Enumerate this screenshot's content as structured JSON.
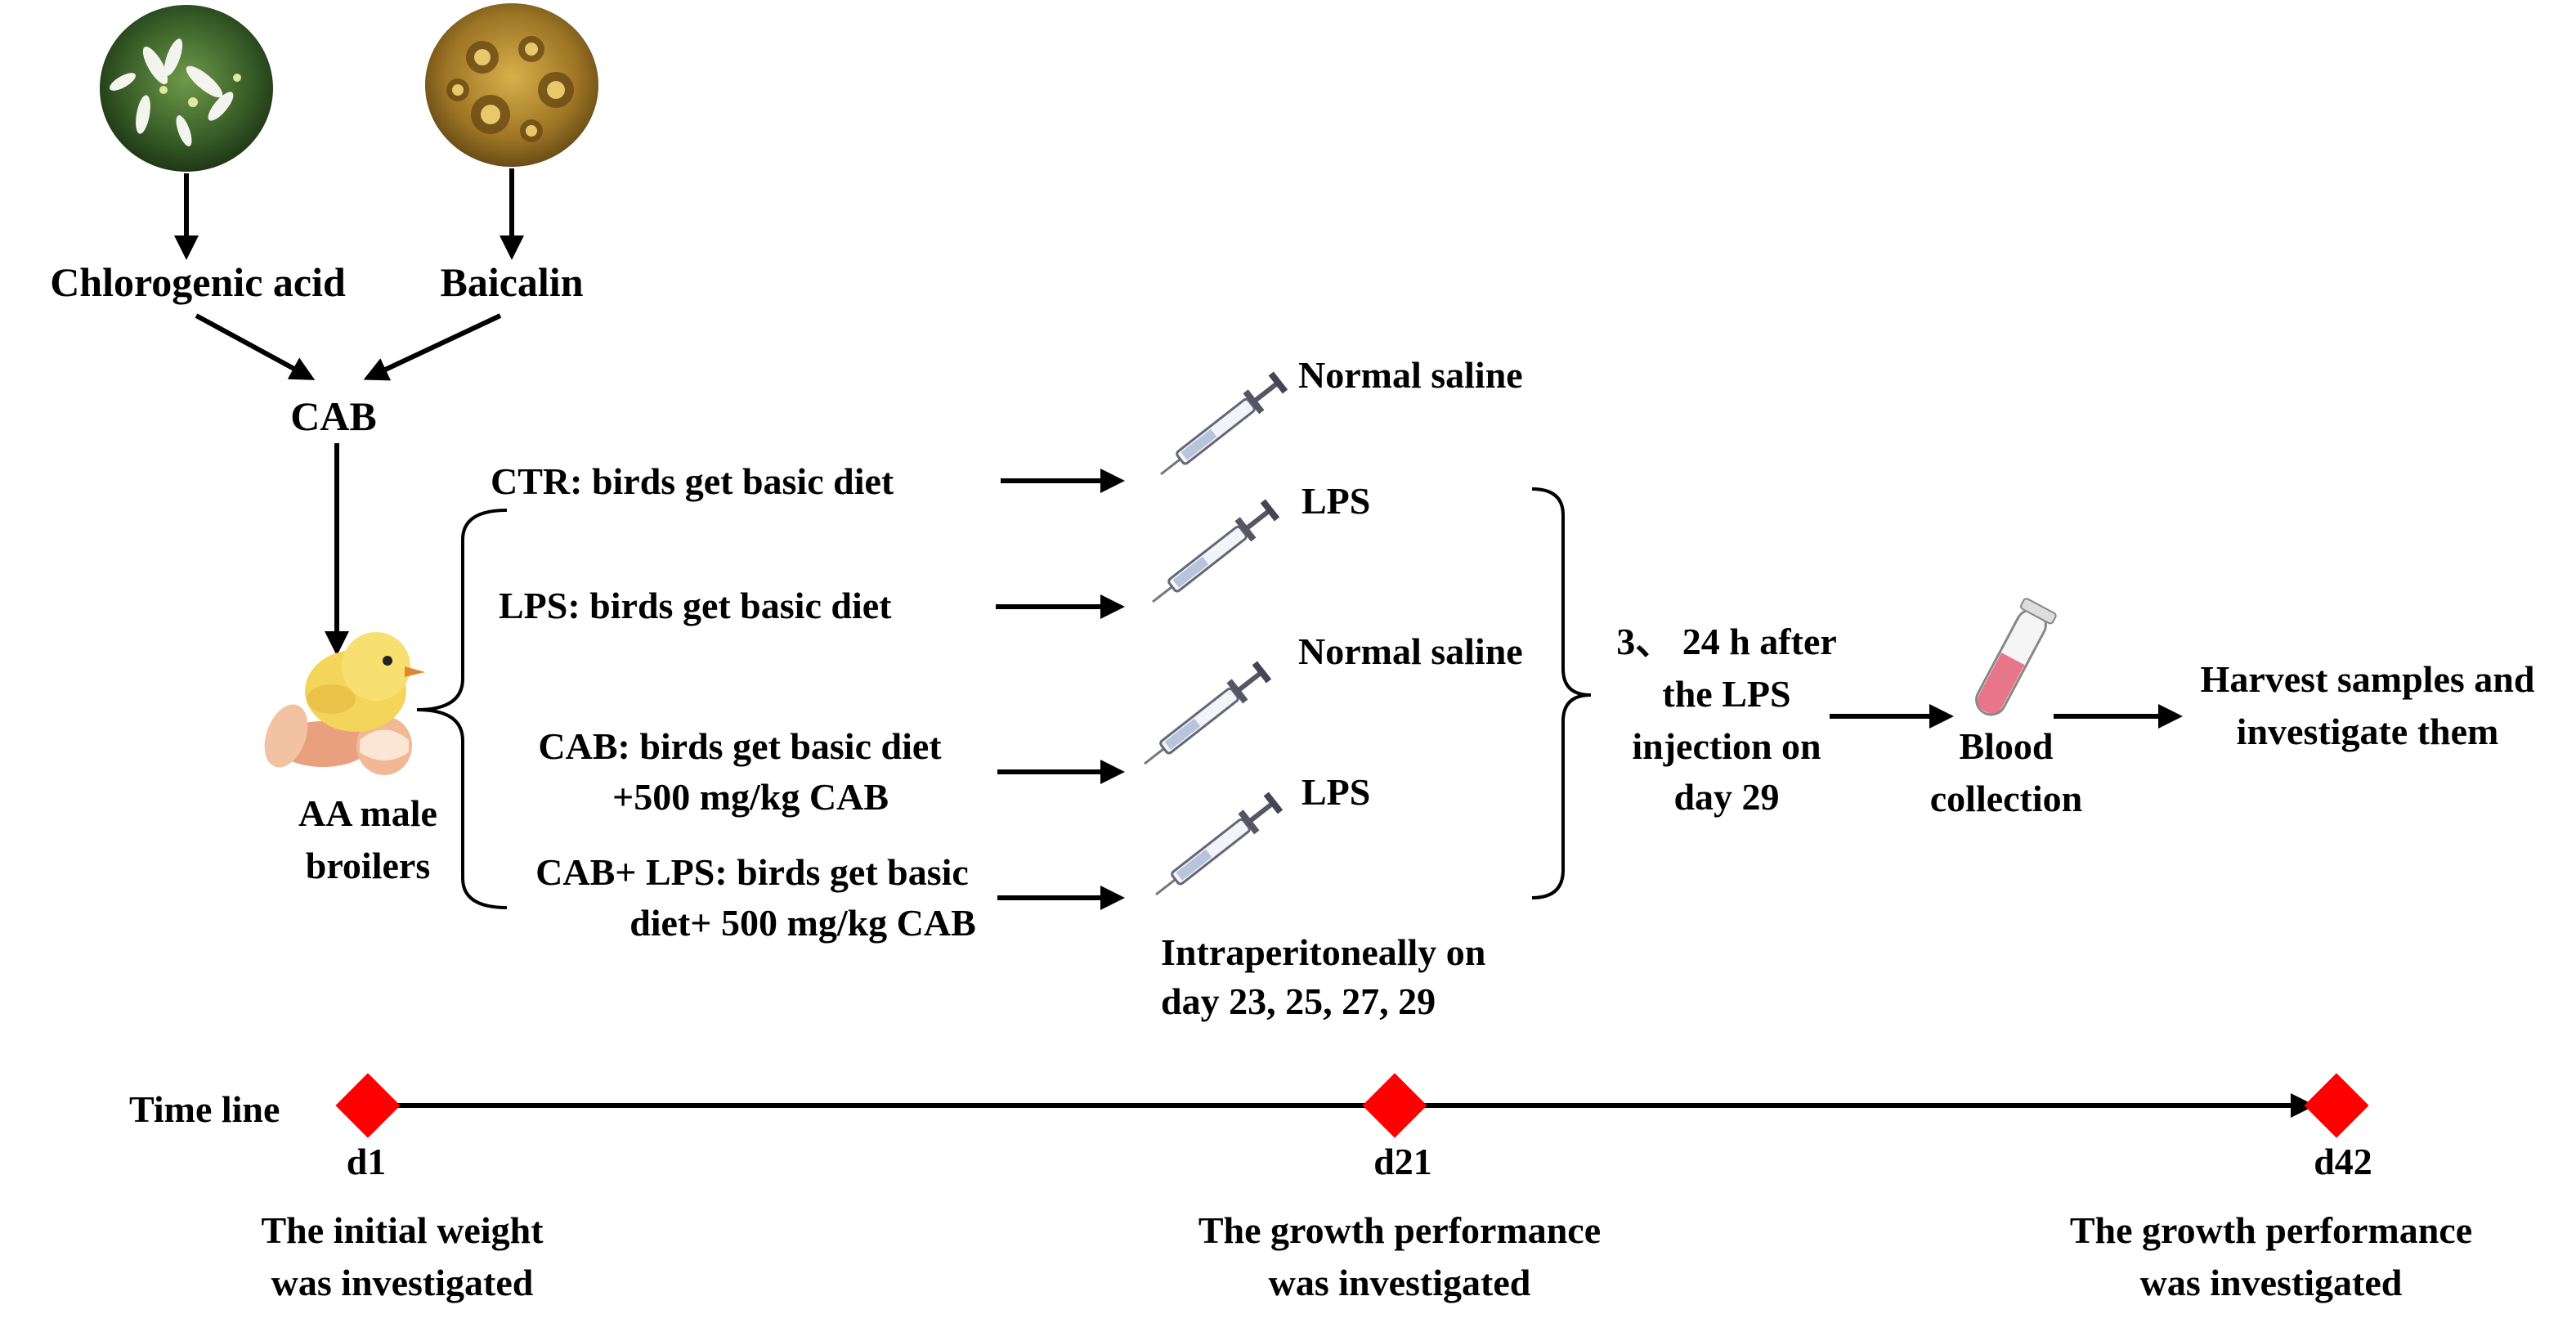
{
  "sources": {
    "chlorogenic_acid": "Chlorogenic acid",
    "baicalin": "Baicalin",
    "combined": "CAB"
  },
  "animals": {
    "line1": "AA male",
    "line2": "broilers"
  },
  "groups": [
    {
      "line1": "CTR: birds get basic diet",
      "line2": ""
    },
    {
      "line1": "LPS: birds get basic diet",
      "line2": ""
    },
    {
      "line1": "CAB: birds get basic diet",
      "line2": "+500 mg/kg CAB"
    },
    {
      "line1": "CAB+ LPS: birds get basic",
      "line2": "diet+ 500 mg/kg CAB"
    }
  ],
  "injections": [
    "Normal saline",
    "LPS",
    "Normal saline",
    "LPS"
  ],
  "injection_schedule": {
    "line1": "Intraperitoneally on",
    "line2": "day 23, 25, 27, 29"
  },
  "post_injection": {
    "line1": "3、 24 h  after",
    "line2": "the  LPS",
    "line3": "injection on",
    "line4": "day 29"
  },
  "blood": {
    "line1": "Blood",
    "line2": "collection"
  },
  "harvest": {
    "line1": "Harvest samples and",
    "line2": "investigate them"
  },
  "timeline": {
    "label": "Time line",
    "points": [
      {
        "day": "d1",
        "line1": "The initial weight",
        "line2": "was investigated"
      },
      {
        "day": "d21",
        "line1": "The growth performance",
        "line2": "was investigated"
      },
      {
        "day": "d42",
        "line1": "The growth performance",
        "line2": "was investigated"
      }
    ]
  },
  "colors": {
    "marker": "#ff0000",
    "line": "#000000",
    "blood": "#e8768a"
  }
}
